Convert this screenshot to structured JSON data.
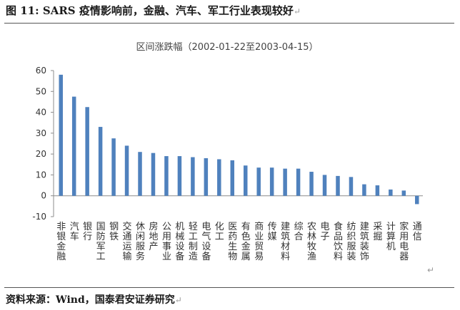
{
  "figure": {
    "label": "图 11:",
    "title": "SARS 疫情影响前，金融、汽车、军工行业表现较好",
    "return_mark": "↵",
    "source": "资料来源：Wind，国泰君安证券研究"
  },
  "chart_data": {
    "type": "bar",
    "title": "区间涨跌幅（2002-01-22至2003-04-15）",
    "xlabel": "",
    "ylabel": "",
    "ylim": [
      -10,
      60
    ],
    "yticks": [
      -10,
      0,
      10,
      20,
      30,
      40,
      50,
      60
    ],
    "grid": false,
    "legend": "none",
    "bar_color": "#4f81bd",
    "categories": [
      "非银金融",
      "汽车",
      "银行",
      "国防军工",
      "钢铁",
      "交通运输",
      "休闲服务",
      "房地产",
      "公用事业",
      "机械设备",
      "轻工制造",
      "电气设备",
      "化工",
      "医药生物",
      "有色金属",
      "商业贸易",
      "传媒",
      "建筑材料",
      "综合",
      "农林牧渔",
      "电子",
      "食品饮料",
      "纺织服装",
      "建筑装饰",
      "采掘",
      "计算机",
      "家用电器",
      "通信"
    ],
    "values": [
      58,
      47.5,
      42.5,
      33,
      27.5,
      24,
      21,
      20.5,
      19,
      19,
      18.5,
      18,
      17.5,
      17,
      14.5,
      13.5,
      13.5,
      13,
      13,
      11.5,
      10,
      9.5,
      9,
      5.5,
      5,
      3,
      2.5,
      -4
    ]
  }
}
